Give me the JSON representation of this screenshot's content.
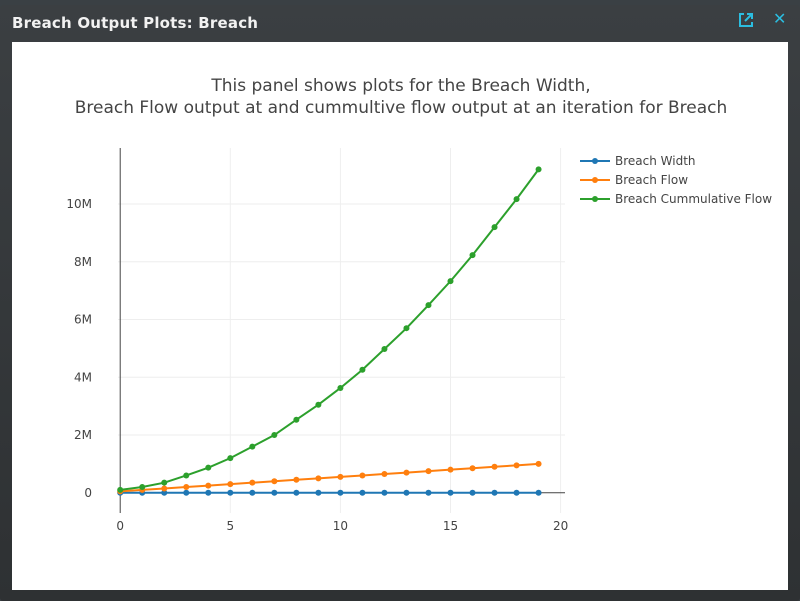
{
  "window": {
    "title": "Breach Output Plots: Breach",
    "icons": [
      "popout-icon",
      "close-icon"
    ],
    "close_glyph": "✕",
    "accent": "#2bbde0"
  },
  "chart_data": {
    "type": "line",
    "title_lines": [
      "This panel shows plots for the Breach Width,",
      "Breach Flow output at and cummultive flow output at an iteration for Breach"
    ],
    "xlabel": "",
    "ylabel": "",
    "x": [
      0,
      1,
      2,
      3,
      4,
      5,
      6,
      7,
      8,
      9,
      10,
      11,
      12,
      13,
      14,
      15,
      16,
      17,
      18,
      19
    ],
    "xlim": [
      -0.1,
      20.2
    ],
    "ylim": [
      -700000,
      11940000
    ],
    "xticks": [
      0,
      5,
      10,
      15,
      20
    ],
    "xtick_labels": [
      "0",
      "5",
      "10",
      "15",
      "20"
    ],
    "yticks": [
      0,
      2000000,
      4000000,
      6000000,
      8000000,
      10000000
    ],
    "ytick_labels": [
      "0",
      "2M",
      "4M",
      "6M",
      "8M",
      "10M"
    ],
    "grid": true,
    "legend_position": "right",
    "series": [
      {
        "name": "Breach Width",
        "color": "#1f77b4",
        "values": [
          0,
          0,
          0,
          0,
          0,
          0,
          0,
          0,
          0,
          0,
          0,
          0,
          0,
          0,
          0,
          0,
          0,
          0,
          0,
          0
        ]
      },
      {
        "name": "Breach Flow",
        "color": "#ff7f0e",
        "values": [
          50000,
          100000,
          150000,
          200000,
          250000,
          300000,
          350000,
          400000,
          450000,
          500000,
          550000,
          600000,
          650000,
          700000,
          750000,
          800000,
          850000,
          900000,
          950000,
          1000000
        ]
      },
      {
        "name": "Breach Cummulative Flow",
        "color": "#2ca02c",
        "values": [
          100000,
          200000,
          350000,
          600000,
          870000,
          1200000,
          1600000,
          2000000,
          2530000,
          3050000,
          3630000,
          4260000,
          4980000,
          5700000,
          6500000,
          7330000,
          8230000,
          9200000,
          10170000,
          11200000
        ]
      }
    ]
  }
}
